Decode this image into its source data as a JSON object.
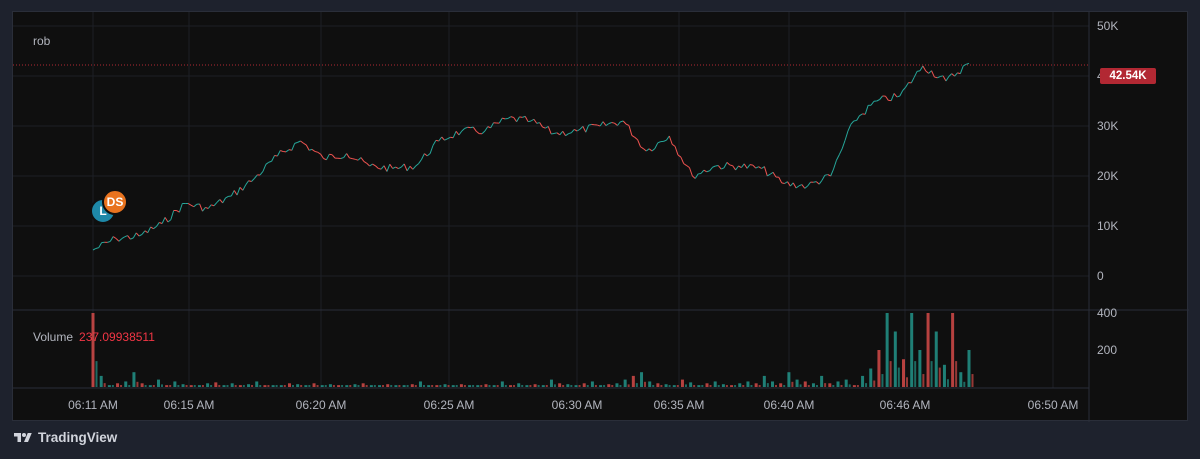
{
  "symbol": "rob",
  "volume_label": "Volume",
  "volume_value": "237.09938511",
  "last_price_label": "42.54K",
  "markers": {
    "l": "L",
    "ds": "DS"
  },
  "brand": "TradingView",
  "colors": {
    "background": "#0f0f0f",
    "up": "#26a69a",
    "down": "#ef5350",
    "grid": "#1c1f26",
    "text": "#b2b5be",
    "price_line": "#b22833"
  },
  "icons": [
    "tradingview-logo-icon"
  ],
  "chart_data": [
    {
      "type": "line",
      "title": "",
      "series": [
        {
          "values": [
            [
              "06:11",
              5200
            ],
            [
              "06:12",
              7500
            ],
            [
              "06:13",
              8000
            ],
            [
              "06:14",
              10500
            ],
            [
              "06:15",
              14500
            ],
            [
              "06:16",
              13500
            ],
            [
              "06:17",
              16000
            ],
            [
              "06:18",
              19500
            ],
            [
              "06:19",
              24000
            ],
            [
              "06:20",
              27000
            ],
            [
              "06:21",
              23500
            ],
            [
              "06:22",
              24500
            ],
            [
              "06:23",
              22000
            ],
            [
              "06:24",
              21500
            ],
            [
              "06:25",
              22000
            ],
            [
              "06:26",
              27000
            ],
            [
              "06:27",
              29000
            ],
            [
              "06:28",
              29000
            ],
            [
              "06:29",
              31500
            ],
            [
              "06:30",
              31000
            ],
            [
              "06:31",
              28500
            ],
            [
              "06:32",
              29000
            ],
            [
              "06:33",
              30000
            ],
            [
              "06:34",
              31000
            ],
            [
              "06:35",
              25000
            ],
            [
              "06:36",
              28000
            ],
            [
              "06:37",
              20000
            ],
            [
              "06:38",
              22000
            ],
            [
              "06:39",
              22000
            ],
            [
              "06:40",
              21500
            ],
            [
              "06:41",
              18500
            ],
            [
              "06:42",
              18000
            ],
            [
              "06:43",
              20000
            ],
            [
              "06:44",
              31000
            ],
            [
              "06:45",
              35000
            ],
            [
              "06:46",
              36000
            ],
            [
              "06:47",
              42000
            ],
            [
              "06:48",
              39000
            ],
            [
              "06:49",
              42540
            ]
          ]
        }
      ],
      "x_ticks": [
        "06:11 AM",
        "06:15 AM",
        "06:20 AM",
        "06:25 AM",
        "06:30 AM",
        "06:35 AM",
        "06:40 AM",
        "06:46 AM",
        "06:50 AM"
      ],
      "y_ticks": [
        "50K",
        "40K",
        "30K",
        "20K",
        "10K",
        "0"
      ],
      "ylim": [
        0,
        50000
      ],
      "last_value": 42540,
      "grid": true
    },
    {
      "type": "bar",
      "title": "Volume",
      "y_ticks": [
        "400",
        "200"
      ],
      "ylim": [
        0,
        400
      ],
      "values": [
        400,
        60,
        10,
        20,
        30,
        80,
        20,
        10,
        40,
        10,
        30,
        15,
        10,
        10,
        20,
        25,
        10,
        20,
        10,
        15,
        30,
        10,
        10,
        10,
        20,
        15,
        10,
        20,
        10,
        15,
        10,
        10,
        15,
        20,
        10,
        10,
        15,
        10,
        10,
        15,
        30,
        10,
        10,
        15,
        10,
        15,
        10,
        10,
        15,
        10,
        30,
        10,
        20,
        10,
        15,
        10,
        40,
        20,
        15,
        10,
        20,
        30,
        10,
        15,
        20,
        40,
        60,
        80,
        30,
        20,
        15,
        10,
        40,
        25,
        10,
        20,
        30,
        15,
        10,
        20,
        30,
        20,
        60,
        30,
        20,
        80,
        40,
        30,
        20,
        60,
        20,
        30,
        40,
        10,
        60,
        100,
        200,
        400,
        300,
        150,
        400,
        200,
        400,
        300,
        120,
        400,
        80,
        200
      ]
    }
  ]
}
